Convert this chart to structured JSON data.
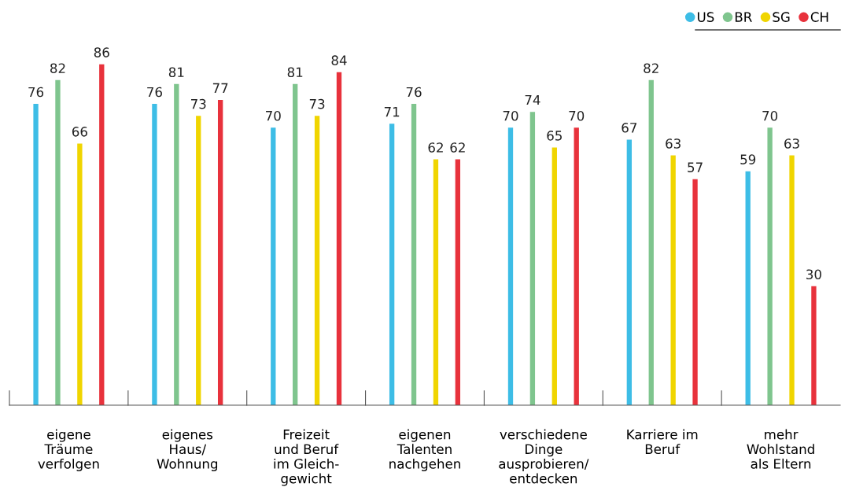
{
  "chart_data": {
    "type": "bar",
    "categories": [
      "eigene\nTräume\nverfolgen",
      "eigenes\nHaus/\nWohnung",
      "Freizeit\nund Beruf\nim Gleich-\ngewicht",
      "eigenen\nTalenten\nnachgehen",
      "verschiedene\nDinge\nausprobieren/\nentdecken",
      "Karriere im\nBeruf",
      "mehr\nWohlstand\nals Eltern"
    ],
    "series": [
      {
        "name": "US",
        "color": "#3dbde6",
        "values": [
          76,
          76,
          70,
          71,
          70,
          67,
          59
        ]
      },
      {
        "name": "BR",
        "color": "#7fc58e",
        "values": [
          82,
          81,
          81,
          76,
          74,
          82,
          70
        ]
      },
      {
        "name": "SG",
        "color": "#f0d500",
        "values": [
          66,
          73,
          73,
          62,
          65,
          63,
          63
        ]
      },
      {
        "name": "CH",
        "color": "#e8323c",
        "values": [
          86,
          77,
          84,
          62,
          70,
          57,
          30
        ]
      }
    ],
    "data_labels": true,
    "legend": "top right"
  }
}
